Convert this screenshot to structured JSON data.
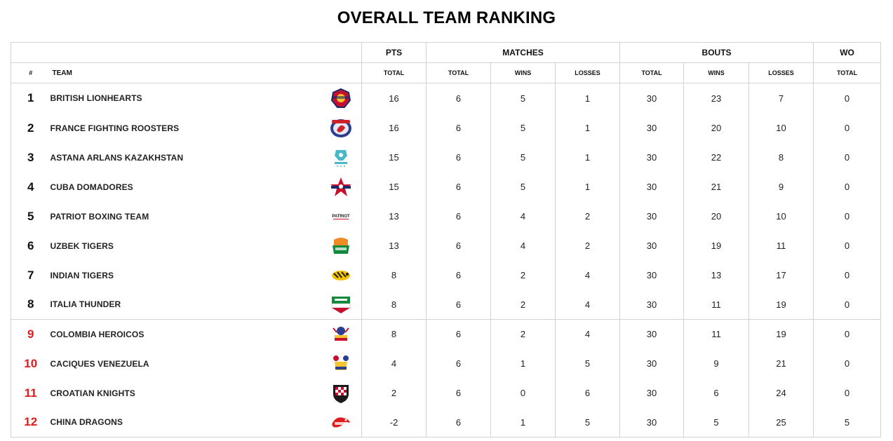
{
  "title": "OVERALL TEAM RANKING",
  "header": {
    "hash": "#",
    "team": "TEAM",
    "groups": {
      "pts": "PTS",
      "matches": "MATCHES",
      "bouts": "BOUTS",
      "wo": "WO"
    },
    "sub": {
      "total": "TOTAL",
      "wins": "WINS",
      "losses": "LOSSES"
    }
  },
  "rows": [
    {
      "rank": "1",
      "team": "BRITISH LIONHEARTS",
      "logo": "lionhearts-logo",
      "pts": "16",
      "m_total": "6",
      "m_wins": "5",
      "m_losses": "1",
      "b_total": "30",
      "b_wins": "23",
      "b_losses": "7",
      "wo": "0"
    },
    {
      "rank": "2",
      "team": "FRANCE FIGHTING ROOSTERS",
      "logo": "roosters-logo",
      "pts": "16",
      "m_total": "6",
      "m_wins": "5",
      "m_losses": "1",
      "b_total": "30",
      "b_wins": "20",
      "b_losses": "10",
      "wo": "0"
    },
    {
      "rank": "3",
      "team": "ASTANA ARLANS KAZAKHSTAN",
      "logo": "arlans-logo",
      "pts": "15",
      "m_total": "6",
      "m_wins": "5",
      "m_losses": "1",
      "b_total": "30",
      "b_wins": "22",
      "b_losses": "8",
      "wo": "0"
    },
    {
      "rank": "4",
      "team": "CUBA DOMADORES",
      "logo": "domadores-logo",
      "pts": "15",
      "m_total": "6",
      "m_wins": "5",
      "m_losses": "1",
      "b_total": "30",
      "b_wins": "21",
      "b_losses": "9",
      "wo": "0"
    },
    {
      "rank": "5",
      "team": "PATRIOT BOXING TEAM",
      "logo": "patriot-logo",
      "pts": "13",
      "m_total": "6",
      "m_wins": "4",
      "m_losses": "2",
      "b_total": "30",
      "b_wins": "20",
      "b_losses": "10",
      "wo": "0"
    },
    {
      "rank": "6",
      "team": "UZBEK TIGERS",
      "logo": "uzbek-tigers-logo",
      "pts": "13",
      "m_total": "6",
      "m_wins": "4",
      "m_losses": "2",
      "b_total": "30",
      "b_wins": "19",
      "b_losses": "11",
      "wo": "0"
    },
    {
      "rank": "7",
      "team": "INDIAN TIGERS",
      "logo": "indian-tigers-logo",
      "pts": "8",
      "m_total": "6",
      "m_wins": "2",
      "m_losses": "4",
      "b_total": "30",
      "b_wins": "13",
      "b_losses": "17",
      "wo": "0"
    },
    {
      "rank": "8",
      "team": "ITALIA THUNDER",
      "logo": "thunder-logo",
      "pts": "8",
      "m_total": "6",
      "m_wins": "2",
      "m_losses": "4",
      "b_total": "30",
      "b_wins": "11",
      "b_losses": "19",
      "wo": "0"
    },
    {
      "rank": "9",
      "team": "COLOMBIA HEROICOS",
      "logo": "heroicos-logo",
      "pts": "8",
      "m_total": "6",
      "m_wins": "2",
      "m_losses": "4",
      "b_total": "30",
      "b_wins": "11",
      "b_losses": "19",
      "wo": "0"
    },
    {
      "rank": "10",
      "team": "CACIQUES VENEZUELA",
      "logo": "caciques-logo",
      "pts": "4",
      "m_total": "6",
      "m_wins": "1",
      "m_losses": "5",
      "b_total": "30",
      "b_wins": "9",
      "b_losses": "21",
      "wo": "0"
    },
    {
      "rank": "11",
      "team": "CROATIAN KNIGHTS",
      "logo": "knights-logo",
      "pts": "2",
      "m_total": "6",
      "m_wins": "0",
      "m_losses": "6",
      "b_total": "30",
      "b_wins": "6",
      "b_losses": "24",
      "wo": "0"
    },
    {
      "rank": "12",
      "team": "CHINA DRAGONS",
      "logo": "dragons-logo",
      "pts": "-2",
      "m_total": "6",
      "m_wins": "1",
      "m_losses": "5",
      "b_total": "30",
      "b_wins": "5",
      "b_losses": "25",
      "wo": "5"
    }
  ],
  "colors": {
    "rank_top": "#111111",
    "rank_bottom": "#e01b1b",
    "grid": "#d2d2d2"
  }
}
